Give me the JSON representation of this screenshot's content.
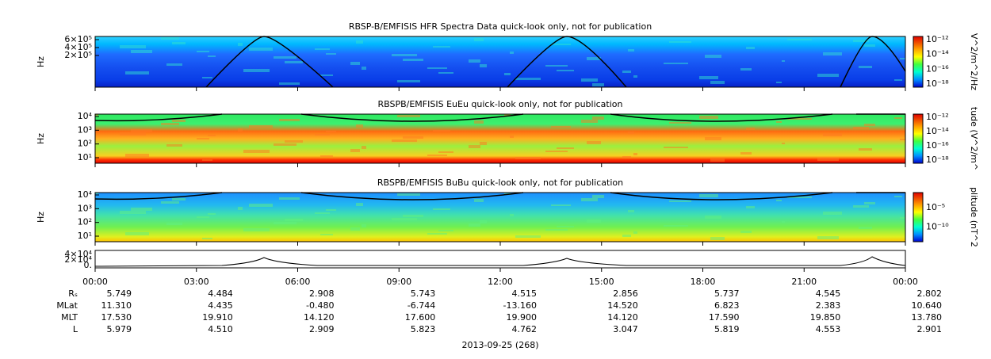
{
  "panels": [
    {
      "title": "RBSP-B/EMFISIS  HFR Spectra Data quick-look only, not for publication",
      "y_label": "Hz",
      "yticks": [
        "6×10⁵",
        "4×10⁵",
        "2×10⁵"
      ],
      "colorbar_label": "V^2/m^2/Hz",
      "colorbar_ticks": [
        "10⁻¹²",
        "10⁻¹⁴",
        "10⁻¹⁶",
        "10⁻¹⁸"
      ]
    },
    {
      "title": "RBSPB/EMFISIS  EuEu quick-look only, not for publication",
      "y_label": "Hz",
      "yticks": [
        "10⁴",
        "10³",
        "10²",
        "10¹"
      ],
      "colorbar_label": "tude (V^2/m^",
      "colorbar_ticks": [
        "10⁻¹²",
        "10⁻¹⁴",
        "10⁻¹⁶",
        "10⁻¹⁸"
      ]
    },
    {
      "title": "RBSPB/EMFISIS  BuBu quick-look only, not for publication",
      "y_label": "Hz",
      "yticks": [
        "10⁴",
        "10³",
        "10²",
        "10¹"
      ],
      "colorbar_label": "plitude (nT^2",
      "colorbar_ticks": [
        "10⁻⁵",
        "10⁻¹⁰"
      ]
    }
  ],
  "line_panel": {
    "yticks": [
      "4×10⁴",
      "2×10⁴",
      "0."
    ]
  },
  "x_ticks": [
    "00:00",
    "03:00",
    "06:00",
    "09:00",
    "12:00",
    "15:00",
    "18:00",
    "21:00",
    "00:00"
  ],
  "ephemeris": [
    {
      "label": "Rₛ",
      "values": [
        "5.749",
        "4.484",
        "2.908",
        "5.743",
        "4.515",
        "2.856",
        "5.737",
        "4.545",
        "2.802"
      ]
    },
    {
      "label": "MLat",
      "values": [
        "11.310",
        "4.435",
        "-0.480",
        "-6.744",
        "-13.160",
        "14.520",
        "6.823",
        "2.383",
        "10.640"
      ]
    },
    {
      "label": "MLT",
      "values": [
        "17.530",
        "19.910",
        "14.120",
        "17.600",
        "19.900",
        "14.120",
        "17.590",
        "19.850",
        "13.780"
      ]
    },
    {
      "label": "L",
      "values": [
        "5.979",
        "4.510",
        "2.909",
        "5.823",
        "4.762",
        "3.047",
        "5.819",
        "4.553",
        "2.901"
      ]
    }
  ],
  "date": "2013-09-25 (268)"
}
